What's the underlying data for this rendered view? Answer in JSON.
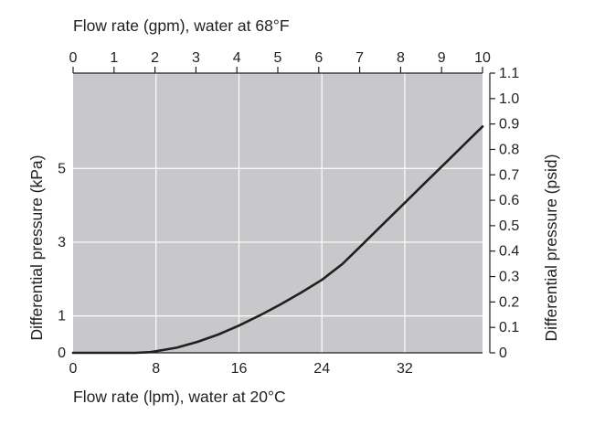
{
  "chart_data": {
    "type": "line",
    "top_axis": {
      "label": "Flow rate (gpm), water at 68°F",
      "ticks": [
        0,
        1,
        2,
        3,
        4,
        5,
        6,
        7,
        8,
        9,
        10
      ],
      "range": [
        0,
        10
      ]
    },
    "bottom_axis": {
      "label": "Flow rate (lpm), water at 20°C",
      "ticks": [
        0,
        8,
        16,
        24,
        32
      ],
      "range": [
        0,
        39.5
      ]
    },
    "left_axis": {
      "label": "Differential pressure (kPa)",
      "ticks": [
        0,
        1,
        3,
        5
      ]
    },
    "right_axis": {
      "label": "Differential pressure (psid)",
      "ticks": [
        0,
        0.1,
        0.2,
        0.3,
        0.4,
        0.5,
        0.6,
        0.7,
        0.8,
        0.9,
        1.0,
        1.1
      ],
      "tick_labels": [
        "0",
        "0.1",
        "0.2",
        "0.3",
        "0.4",
        "0.5",
        "0.6",
        "0.7",
        "0.8",
        "0.9",
        "1.0",
        "1.1"
      ],
      "range": [
        0,
        1.1
      ]
    },
    "grid": true,
    "colors": {
      "plot_background": "#c8c8ca",
      "grid": "#ffffff",
      "line": "#231f20"
    },
    "series": [
      {
        "x_lpm": [
          0,
          6,
          7.5,
          10,
          12,
          14,
          16,
          18,
          20,
          22,
          24,
          26,
          28,
          30,
          32,
          34,
          36,
          38,
          39.5
        ],
        "y_psid": [
          0,
          0,
          0.003,
          0.02,
          0.043,
          0.072,
          0.107,
          0.147,
          0.19,
          0.237,
          0.287,
          0.35,
          0.43,
          0.51,
          0.59,
          0.67,
          0.75,
          0.83,
          0.89
        ]
      }
    ]
  }
}
